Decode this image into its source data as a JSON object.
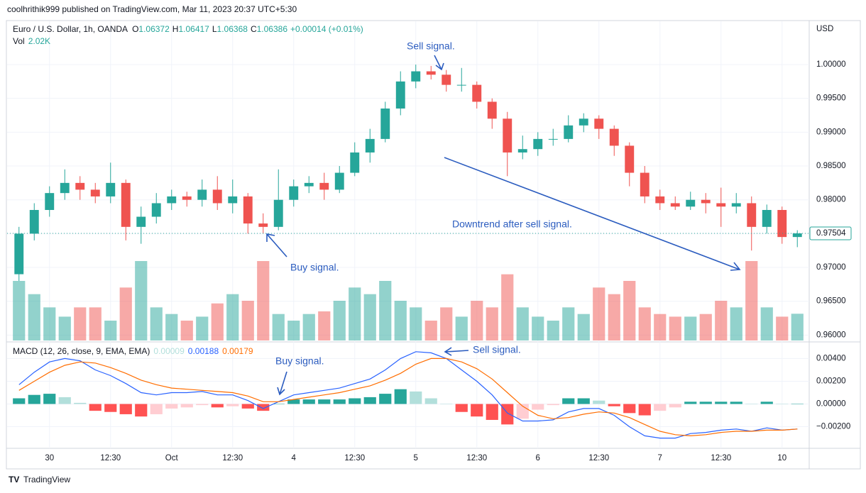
{
  "page": {
    "byline": "coolhrithik999 published on TradingView.com, Mar 11, 2023 20:37 UTC+5:30",
    "brand": "TradingView"
  },
  "chart_data": {
    "type": "candlestick",
    "title": "Euro / U.S. Dollar, 1h, OANDA",
    "ohlc_labels": [
      "O",
      "H",
      "L",
      "C"
    ],
    "header_ohlc": [
      1.06372,
      1.06417,
      1.06368,
      1.06386
    ],
    "header_change": "+0.00014 (+0.01%)",
    "vol_legend": {
      "name": "Vol",
      "value": "2.02K"
    },
    "currency": "USD",
    "up_color": "#26a69a",
    "down_color": "#ef5350",
    "categories": [
      null,
      null,
      "30",
      null,
      null,
      null,
      "12:30",
      null,
      null,
      null,
      "Oct",
      null,
      null,
      null,
      "12:30",
      null,
      null,
      null,
      "4",
      null,
      null,
      null,
      "12:30",
      null,
      null,
      null,
      "5",
      null,
      null,
      null,
      "12:30",
      null,
      null,
      null,
      "6",
      null,
      null,
      null,
      "12:30",
      null,
      null,
      null,
      "7",
      null,
      null,
      null,
      "12:30",
      null,
      null,
      null,
      "10",
      null
    ],
    "candles": [
      [
        0.969,
        0.976,
        0.968,
        0.975
      ],
      [
        0.975,
        0.9795,
        0.974,
        0.9785
      ],
      [
        0.9785,
        0.982,
        0.9775,
        0.981
      ],
      [
        0.981,
        0.9845,
        0.98,
        0.9825
      ],
      [
        0.9825,
        0.9835,
        0.98,
        0.9815
      ],
      [
        0.9815,
        0.9825,
        0.9795,
        0.9805
      ],
      [
        0.9805,
        0.9855,
        0.9795,
        0.9825
      ],
      [
        0.9825,
        0.983,
        0.974,
        0.976
      ],
      [
        0.976,
        0.979,
        0.9735,
        0.9775
      ],
      [
        0.9775,
        0.981,
        0.9765,
        0.9795
      ],
      [
        0.9795,
        0.9815,
        0.9785,
        0.9805
      ],
      [
        0.9805,
        0.9812,
        0.979,
        0.98
      ],
      [
        0.98,
        0.983,
        0.979,
        0.9815
      ],
      [
        0.9815,
        0.9835,
        0.9785,
        0.9795
      ],
      [
        0.9795,
        0.983,
        0.978,
        0.9805
      ],
      [
        0.9805,
        0.981,
        0.975,
        0.9765
      ],
      [
        0.9765,
        0.978,
        0.975,
        0.976
      ],
      [
        0.976,
        0.9845,
        0.9755,
        0.98
      ],
      [
        0.98,
        0.983,
        0.979,
        0.982
      ],
      [
        0.982,
        0.9835,
        0.981,
        0.9825
      ],
      [
        0.9825,
        0.984,
        0.98,
        0.9815
      ],
      [
        0.9815,
        0.985,
        0.981,
        0.984
      ],
      [
        0.984,
        0.9885,
        0.9835,
        0.987
      ],
      [
        0.987,
        0.9905,
        0.9855,
        0.989
      ],
      [
        0.989,
        0.9945,
        0.9885,
        0.9935
      ],
      [
        0.9935,
        0.999,
        0.9925,
        0.9975
      ],
      [
        0.9975,
        1.0,
        0.9965,
        0.999
      ],
      [
        0.999,
        0.9998,
        0.9978,
        0.9985
      ],
      [
        0.9985,
        0.9992,
        0.996,
        0.997
      ],
      [
        0.997,
        0.9995,
        0.996,
        0.997
      ],
      [
        0.997,
        0.9975,
        0.9935,
        0.9945
      ],
      [
        0.9945,
        0.995,
        0.9905,
        0.992
      ],
      [
        0.992,
        0.993,
        0.9835,
        0.987
      ],
      [
        0.987,
        0.9895,
        0.986,
        0.9875
      ],
      [
        0.9875,
        0.99,
        0.9865,
        0.989
      ],
      [
        0.989,
        0.9905,
        0.988,
        0.989
      ],
      [
        0.989,
        0.9925,
        0.9885,
        0.991
      ],
      [
        0.991,
        0.9928,
        0.99,
        0.992
      ],
      [
        0.992,
        0.9925,
        0.989,
        0.9905
      ],
      [
        0.9905,
        0.991,
        0.9865,
        0.988
      ],
      [
        0.988,
        0.9885,
        0.982,
        0.984
      ],
      [
        0.984,
        0.985,
        0.9795,
        0.9805
      ],
      [
        0.9805,
        0.9815,
        0.9785,
        0.9795
      ],
      [
        0.9795,
        0.9805,
        0.9785,
        0.979
      ],
      [
        0.979,
        0.9812,
        0.9785,
        0.98
      ],
      [
        0.98,
        0.981,
        0.978,
        0.9795
      ],
      [
        0.9795,
        0.9818,
        0.976,
        0.979
      ],
      [
        0.979,
        0.981,
        0.978,
        0.9795
      ],
      [
        0.9795,
        0.9805,
        0.9725,
        0.976
      ],
      [
        0.976,
        0.9793,
        0.975,
        0.9785
      ],
      [
        0.9785,
        0.979,
        0.9735,
        0.9745
      ],
      [
        0.9745,
        0.9755,
        0.973,
        0.97504
      ]
    ],
    "volume": [
      4500,
      3500,
      2500,
      1800,
      2500,
      2500,
      1500,
      4000,
      6000,
      2500,
      2000,
      1500,
      1800,
      2800,
      3500,
      3000,
      6000,
      2000,
      1500,
      2000,
      2200,
      3000,
      4000,
      3500,
      4500,
      3000,
      2500,
      1500,
      2500,
      1800,
      3000,
      2500,
      5000,
      2500,
      1800,
      1500,
      2500,
      2000,
      4000,
      3500,
      4500,
      2500,
      2000,
      1800,
      1800,
      2000,
      3000,
      2500,
      6000,
      2500,
      1800,
      2020
    ],
    "ylim": [
      0.9592,
      1.0064
    ],
    "yticks": [
      {
        "value": 0.96,
        "label": "0.96000"
      },
      {
        "value": 0.965,
        "label": "0.96500"
      },
      {
        "value": 0.97,
        "label": "0.97000"
      },
      {
        "value": 0.975,
        "label": "0.97500"
      },
      {
        "value": 0.98,
        "label": "0.98000"
      },
      {
        "value": 0.985,
        "label": "0.98500"
      },
      {
        "value": 0.99,
        "label": "0.99000"
      },
      {
        "value": 0.995,
        "label": "0.99500"
      },
      {
        "value": 1.0,
        "label": "1.00000"
      }
    ],
    "grid": true,
    "annotations": [
      "Sell signal.",
      "Buy signal.",
      "Downtrend after sell signal.",
      "Sell signal.",
      "Buy signal."
    ],
    "macd": {
      "label": "MACD (12, 26, close, 9, EMA, EMA)",
      "legend_values": [
        9e-05,
        0.00188,
        0.00179
      ],
      "colors": {
        "macd": "#2962ff",
        "signal": "#ff6d00",
        "hist_up": "#26a69a",
        "hist_up_light": "#b2dfdb",
        "hist_down": "#ff5252",
        "hist_down_light": "#ffcdd2"
      },
      "macd": [
        0.0017,
        0.0028,
        0.0037,
        0.004,
        0.0038,
        0.003,
        0.0025,
        0.0018,
        0.001,
        0.0008,
        0.001,
        0.001,
        0.0011,
        0.0008,
        0.0008,
        0.0003,
        -0.0004,
        0.0002,
        0.0008,
        0.001,
        0.0012,
        0.0014,
        0.0018,
        0.0022,
        0.003,
        0.004,
        0.0046,
        0.0045,
        0.004,
        0.003,
        0.002,
        0.0008,
        -0.0008,
        -0.0015,
        -0.0015,
        -0.0014,
        -0.0007,
        -0.0004,
        -0.0004,
        -0.001,
        -0.002,
        -0.0028,
        -0.003,
        -0.003,
        -0.0026,
        -0.0025,
        -0.0023,
        -0.0022,
        -0.0024,
        -0.0021,
        -0.0023,
        -0.0022
      ],
      "signal": [
        0.0012,
        0.002,
        0.0028,
        0.0034,
        0.0037,
        0.0036,
        0.0032,
        0.0027,
        0.0021,
        0.0017,
        0.0014,
        0.0013,
        0.0012,
        0.0011,
        0.001,
        0.0007,
        0.0002,
        0.0002,
        0.0004,
        0.0006,
        0.0008,
        0.001,
        0.0013,
        0.0016,
        0.0021,
        0.0027,
        0.0035,
        0.004,
        0.004,
        0.0037,
        0.0031,
        0.0022,
        0.001,
        -0.0002,
        -0.001,
        -0.0013,
        -0.0012,
        -0.0009,
        -0.0007,
        -0.0008,
        -0.0012,
        -0.0018,
        -0.0024,
        -0.0027,
        -0.0028,
        -0.0027,
        -0.0025,
        -0.0024,
        -0.0024,
        -0.0023,
        -0.0023,
        -0.0022
      ],
      "histogram": [
        0.0005,
        0.0008,
        0.0009,
        0.0006,
        0.0001,
        -0.0006,
        -0.0007,
        -0.0009,
        -0.0011,
        -0.0009,
        -0.0004,
        -0.0003,
        -0.0001,
        -0.0003,
        -0.0002,
        -0.0004,
        -0.0006,
        0,
        0.0004,
        0.0004,
        0.0004,
        0.0004,
        0.0005,
        0.0006,
        0.0009,
        0.0013,
        0.0011,
        0.0005,
        0,
        -0.0007,
        -0.0011,
        -0.0014,
        -0.0018,
        -0.0013,
        -0.0005,
        -0.0001,
        0.0005,
        0.0005,
        0.0003,
        -0.0002,
        -0.0008,
        -0.001,
        -0.0006,
        -0.0003,
        0.0002,
        0.0002,
        0.0002,
        0.0002,
        0,
        0.0002,
        0,
        0
      ],
      "ylim": [
        -0.0039,
        0.0054
      ],
      "yticks": [
        {
          "value": 0.004,
          "label": "0.00400"
        },
        {
          "value": 0.002,
          "label": "0.00200"
        },
        {
          "value": 0,
          "label": "0.00000"
        },
        {
          "value": -0.002,
          "label": "−0.00200"
        }
      ]
    }
  }
}
